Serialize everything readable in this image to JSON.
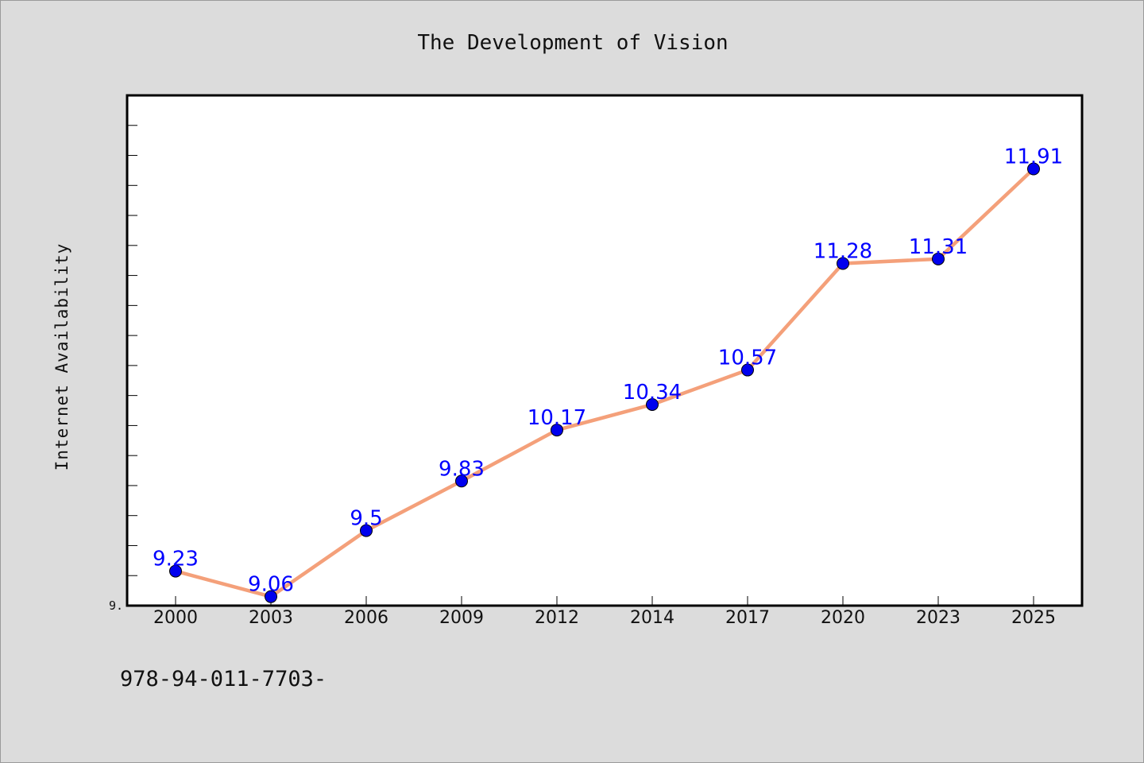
{
  "chart_data": {
    "type": "line",
    "title": "The Development of Vision",
    "xlabel": "",
    "ylabel": "Internet Availability",
    "categories": [
      "2000",
      "2003",
      "2006",
      "2009",
      "2012",
      "2014",
      "2017",
      "2020",
      "2023",
      "2025"
    ],
    "series": [
      {
        "values": [
          9.23,
          9.06,
          9.5,
          9.83,
          10.17,
          10.34,
          10.57,
          11.28,
          11.31,
          11.91
        ]
      }
    ],
    "data_labels": [
      "9.23",
      "9.06",
      "9.5",
      "9.83",
      "10.17",
      "10.34",
      "10.57",
      "11.28",
      "11.31",
      "11.91"
    ],
    "ylim": [
      9.0,
      12.4
    ],
    "y_tick_label": "9.",
    "grid": false,
    "legend": "none",
    "colors": {
      "line": "#f4a07a",
      "marker": "#0000ee",
      "label": "#0000ff",
      "background": "#dcdcdc",
      "plot_background": "#ffffff"
    }
  },
  "footer_text": "978-94-011-7703-"
}
